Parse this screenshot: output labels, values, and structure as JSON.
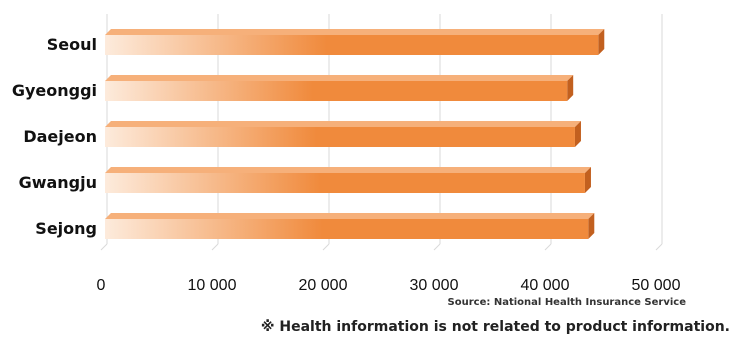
{
  "chart_data": {
    "type": "bar",
    "orientation": "horizontal",
    "categories": [
      "Seoul",
      "Gyeonggi",
      "Daejeon",
      "Gwangju",
      "Sejong"
    ],
    "values": [
      44800,
      42000,
      42700,
      43600,
      43900
    ],
    "xticks": [
      0,
      10000,
      20000,
      30000,
      40000,
      50000
    ],
    "xtick_labels": [
      "0",
      "10 000",
      "20 000",
      "30 000",
      "40 000",
      "50 000"
    ],
    "xlim": [
      0,
      50000
    ],
    "grid": true,
    "legend": "none"
  },
  "colors": {
    "bar": "#f08a3c",
    "bar_light": "#fdebdc",
    "bar_side": "#c2601f",
    "grid": "#d9d9d9"
  },
  "source": "Source: National Health Insurance Service",
  "disclaimer": "※ Health information is not related to product information."
}
